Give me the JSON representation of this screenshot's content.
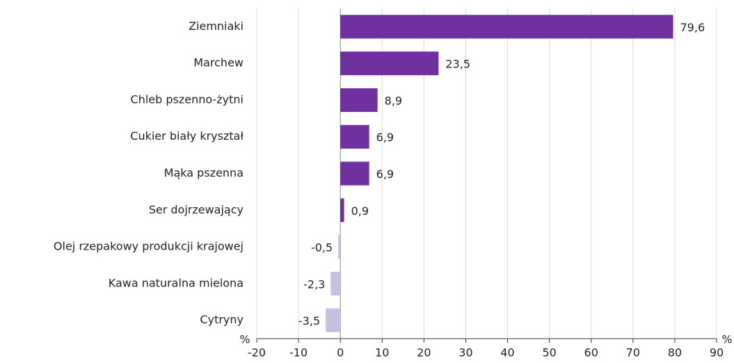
{
  "chart_data": {
    "type": "hbar",
    "categories": [
      "Ziemniaki",
      "Marchew",
      "Chleb pszenno-żytni",
      "Cukier biały kryształ",
      "Mąka pszenna",
      "Ser dojrzewający",
      "Olej rzepakowy produkcji krajowej",
      "Kawa naturalna mielona",
      "Cytryny"
    ],
    "values": [
      79.6,
      23.5,
      8.9,
      6.9,
      6.9,
      0.9,
      -0.5,
      -2.3,
      -3.5
    ],
    "value_labels": [
      "79,6",
      "23,5",
      "8,9",
      "6,9",
      "6,9",
      "0,9",
      "-0,5",
      "-2,3",
      "-3,5"
    ],
    "colors": [
      "#7030a0",
      "#7030a0",
      "#7030a0",
      "#7030a0",
      "#7030a0",
      "#7030a0",
      "#c8bfe0",
      "#c8bfe0",
      "#c8bfe0"
    ],
    "xlabel": "%",
    "xlim": [
      -20,
      90
    ],
    "xticks": [
      -20,
      -10,
      0,
      10,
      20,
      30,
      40,
      50,
      60,
      70,
      80,
      90
    ],
    "grid": true
  }
}
